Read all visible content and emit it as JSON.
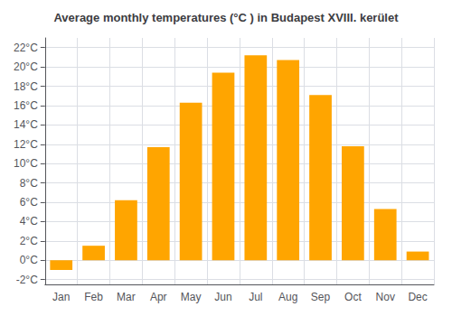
{
  "chart_data": {
    "type": "bar",
    "title": "Average monthly temperatures (°C ) in Budapest XVIII. kerület",
    "categories": [
      "Jan",
      "Feb",
      "Mar",
      "Apr",
      "May",
      "Jun",
      "Jul",
      "Aug",
      "Sep",
      "Oct",
      "Nov",
      "Dec"
    ],
    "values": [
      -1.0,
      1.5,
      6.2,
      11.7,
      16.3,
      19.4,
      21.2,
      20.7,
      17.1,
      11.8,
      5.3,
      0.9
    ],
    "color": "#FFA500",
    "ylim": [
      -2.5,
      23
    ],
    "yticks": [
      {
        "value": -2,
        "label": "-2°C"
      },
      {
        "value": 0,
        "label": "0°C"
      },
      {
        "value": 2,
        "label": "2°C"
      },
      {
        "value": 4,
        "label": "4°C"
      },
      {
        "value": 6,
        "label": "6°C"
      },
      {
        "value": 8,
        "label": "8°C"
      },
      {
        "value": 10,
        "label": "10°C"
      },
      {
        "value": 12,
        "label": "12°C"
      },
      {
        "value": 14,
        "label": "14°C"
      },
      {
        "value": 16,
        "label": "16°C"
      },
      {
        "value": 18,
        "label": "18°C"
      },
      {
        "value": 20,
        "label": "20°C"
      },
      {
        "value": 22,
        "label": "22°C"
      }
    ],
    "grid": true
  }
}
